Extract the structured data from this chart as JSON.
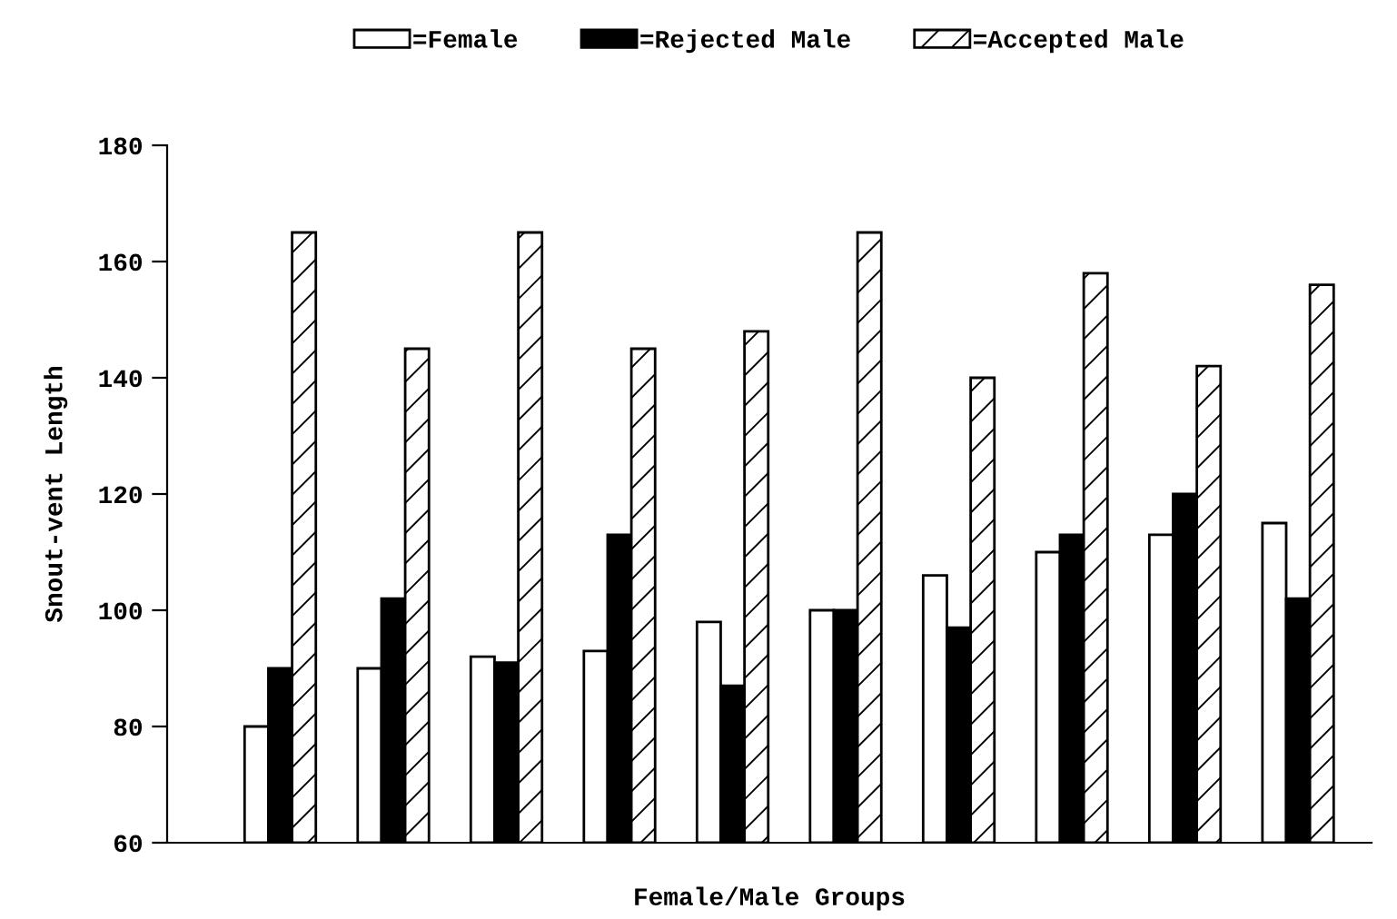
{
  "chart_data": {
    "type": "bar",
    "xlabel": "Female/Male Groups",
    "ylabel": "Snout-vent Length",
    "categories": [
      null,
      null,
      null,
      null,
      null,
      null,
      null,
      null,
      null,
      null
    ],
    "series": [
      {
        "name": "=Female",
        "color": "#ffffff",
        "values": [
          80,
          90,
          92,
          93,
          98,
          100,
          106,
          110,
          113,
          115
        ]
      },
      {
        "name": "=Rejected Male",
        "color": "#000000",
        "values": [
          90,
          102,
          91,
          113,
          87,
          100,
          97,
          113,
          120,
          102
        ]
      },
      {
        "name": "=Accepted Male",
        "color": "#ffffff",
        "values": [
          165,
          145,
          165,
          145,
          148,
          165,
          140,
          158,
          142,
          156
        ]
      }
    ],
    "ylim": [
      60,
      180
    ],
    "yticks": [
      60,
      80,
      100,
      120,
      140,
      160,
      180
    ],
    "grid": false,
    "legend": "top"
  }
}
